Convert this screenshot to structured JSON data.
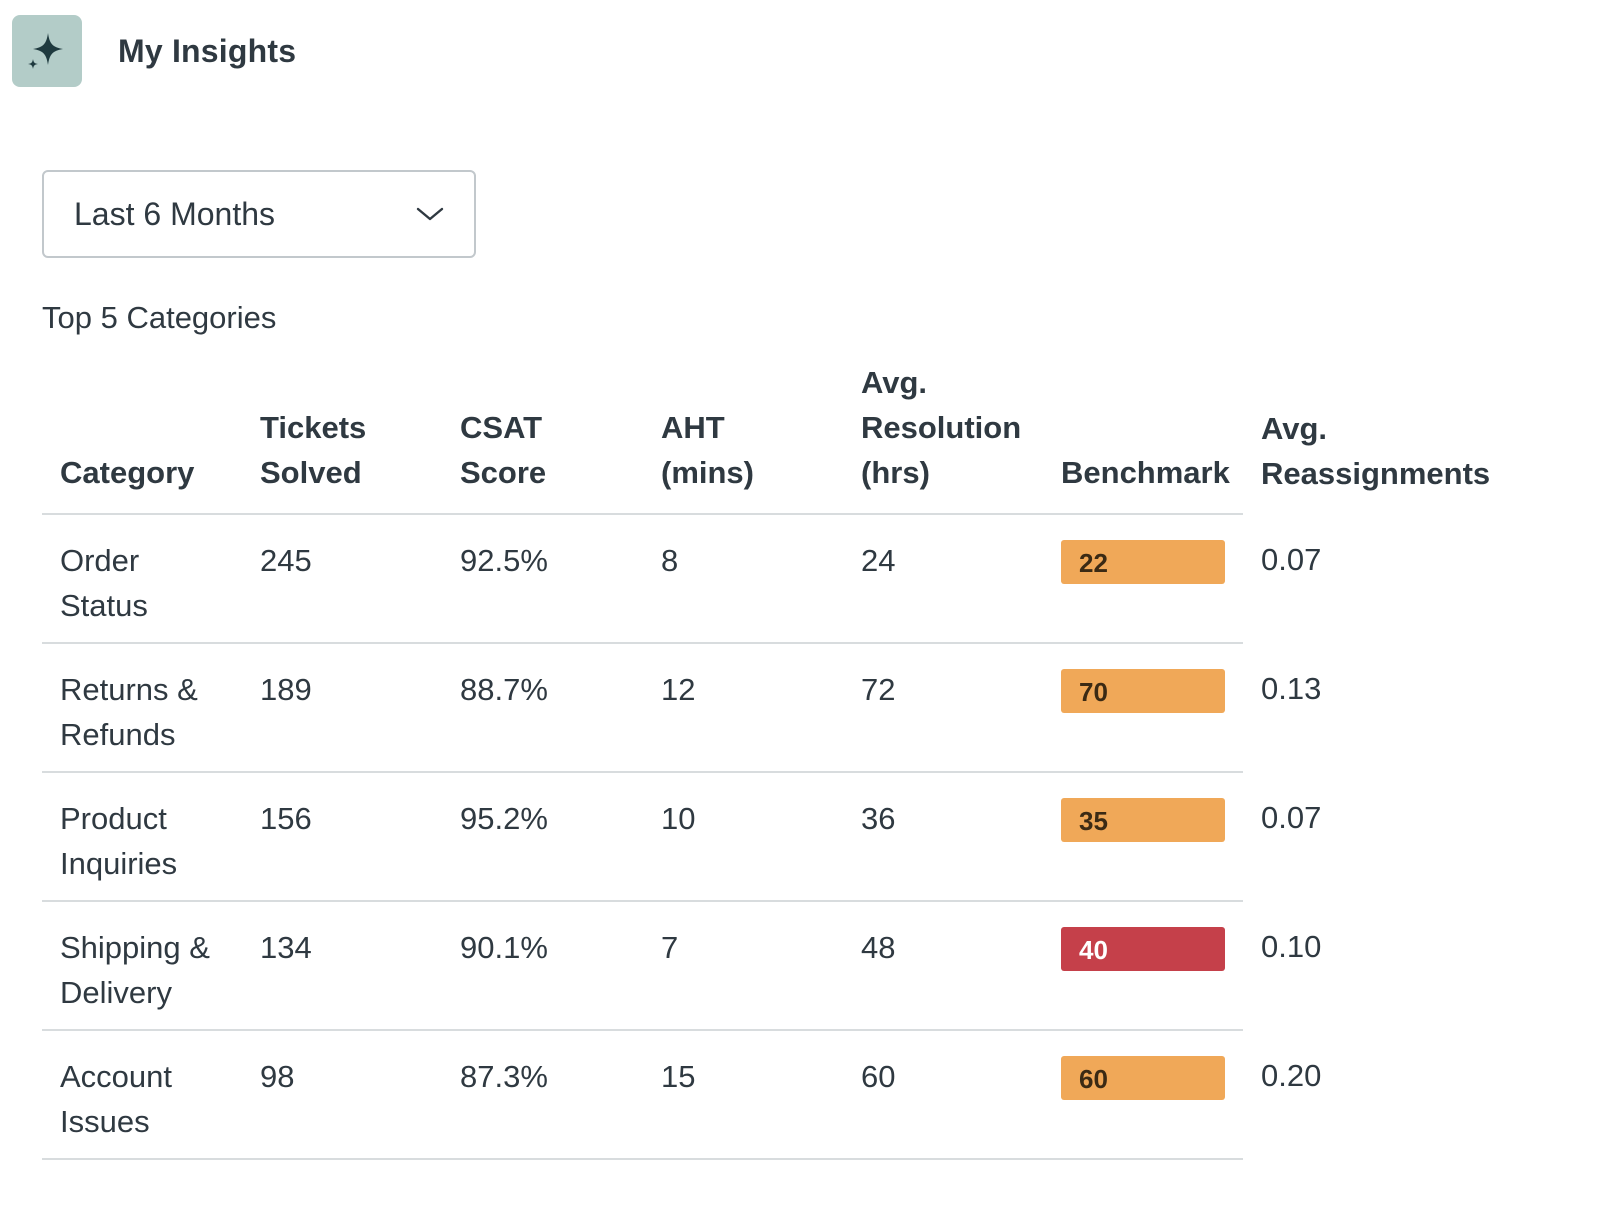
{
  "header": {
    "title": "My Insights",
    "icon": "sparkle-icon"
  },
  "filter": {
    "selected": "Last 6 Months",
    "icon": "chevron-down-icon"
  },
  "section": {
    "title": "Top 5 Categories"
  },
  "table": {
    "headers": {
      "category": "Category",
      "tickets_l1": "Tickets",
      "tickets_l2": "Solved",
      "csat_l1": "CSAT",
      "csat_l2": "Score",
      "aht_l1": "AHT",
      "aht_l2": "(mins)",
      "res_l1": "Avg.",
      "res_l2": "Resolution",
      "res_l3": "(hrs)",
      "benchmark": "Benchmark",
      "reas_l1": "Avg.",
      "reas_l2": "Reassignments"
    },
    "rows": [
      {
        "cat_l1": "Order",
        "cat_l2": "Status",
        "tickets": "245",
        "csat": "92.5%",
        "aht": "8",
        "resolution": "24",
        "benchmark": "22",
        "benchmark_status": "warning",
        "reassignments": "0.07"
      },
      {
        "cat_l1": "Returns &",
        "cat_l2": "Refunds",
        "tickets": "189",
        "csat": "88.7%",
        "aht": "12",
        "resolution": "72",
        "benchmark": "70",
        "benchmark_status": "warning",
        "reassignments": "0.13"
      },
      {
        "cat_l1": "Product",
        "cat_l2": "Inquiries",
        "tickets": "156",
        "csat": "95.2%",
        "aht": "10",
        "resolution": "36",
        "benchmark": "35",
        "benchmark_status": "warning",
        "reassignments": "0.07"
      },
      {
        "cat_l1": "Shipping &",
        "cat_l2": "Delivery",
        "tickets": "134",
        "csat": "90.1%",
        "aht": "7",
        "resolution": "48",
        "benchmark": "40",
        "benchmark_status": "danger",
        "reassignments": "0.10"
      },
      {
        "cat_l1": "Account",
        "cat_l2": "Issues",
        "tickets": "98",
        "csat": "87.3%",
        "aht": "15",
        "resolution": "60",
        "benchmark": "60",
        "benchmark_status": "warning",
        "reassignments": "0.20"
      }
    ]
  },
  "colors": {
    "warning": "#f0a858",
    "danger": "#c5404a",
    "icon_bg": "#b3ccc8",
    "text": "#2f3941",
    "divider": "#d8dcde"
  }
}
